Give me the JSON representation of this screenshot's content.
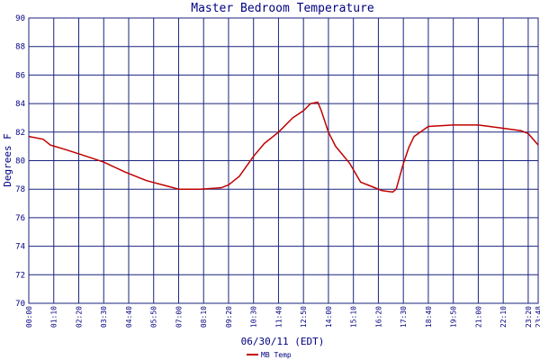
{
  "chart_data": {
    "type": "line",
    "title": "Master Bedroom Temperature",
    "xlabel": "06/30/11 (EDT)",
    "ylabel": "Degrees F",
    "ylim": [
      70,
      90
    ],
    "xlim_minutes": [
      0,
      1428
    ],
    "grid": true,
    "legend_position": "bottom-center",
    "x_tick_labels": [
      "00:00",
      "01:10",
      "02:20",
      "03:30",
      "04:40",
      "05:50",
      "07:00",
      "08:10",
      "09:20",
      "10:30",
      "11:40",
      "12:50",
      "14:00",
      "15:10",
      "16:20",
      "17:30",
      "18:40",
      "19:50",
      "21:00",
      "22:10",
      "23:20",
      "23:48"
    ],
    "y_tick_labels": [
      "70",
      "72",
      "74",
      "76",
      "78",
      "80",
      "82",
      "84",
      "86",
      "88",
      "90"
    ],
    "colors": {
      "grid": "#1a237e",
      "axis_text": "#000080",
      "series": "#c00000"
    },
    "series": [
      {
        "name": "MB Temp",
        "x": [
          "00:00",
          "00:40",
          "01:00",
          "01:40",
          "02:30",
          "03:30",
          "04:30",
          "05:30",
          "06:30",
          "07:00",
          "08:00",
          "09:00",
          "09:20",
          "09:50",
          "10:30",
          "11:00",
          "11:40",
          "12:20",
          "12:50",
          "13:10",
          "13:30",
          "13:40",
          "14:00",
          "14:20",
          "15:00",
          "15:30",
          "16:00",
          "16:30",
          "17:00",
          "17:10",
          "17:30",
          "17:45",
          "18:00",
          "18:40",
          "19:50",
          "21:00",
          "22:00",
          "23:00",
          "23:20",
          "23:48"
        ],
        "y": [
          81.7,
          81.5,
          81.1,
          80.8,
          80.4,
          79.9,
          79.2,
          78.6,
          78.2,
          78.0,
          78.0,
          78.1,
          78.3,
          78.9,
          80.3,
          81.2,
          82.0,
          83.0,
          83.5,
          84.0,
          84.1,
          83.5,
          82.0,
          81.0,
          79.8,
          78.5,
          78.2,
          77.9,
          77.8,
          78.0,
          79.8,
          80.9,
          81.7,
          82.4,
          82.5,
          82.5,
          82.3,
          82.1,
          81.9,
          81.1
        ]
      }
    ]
  }
}
